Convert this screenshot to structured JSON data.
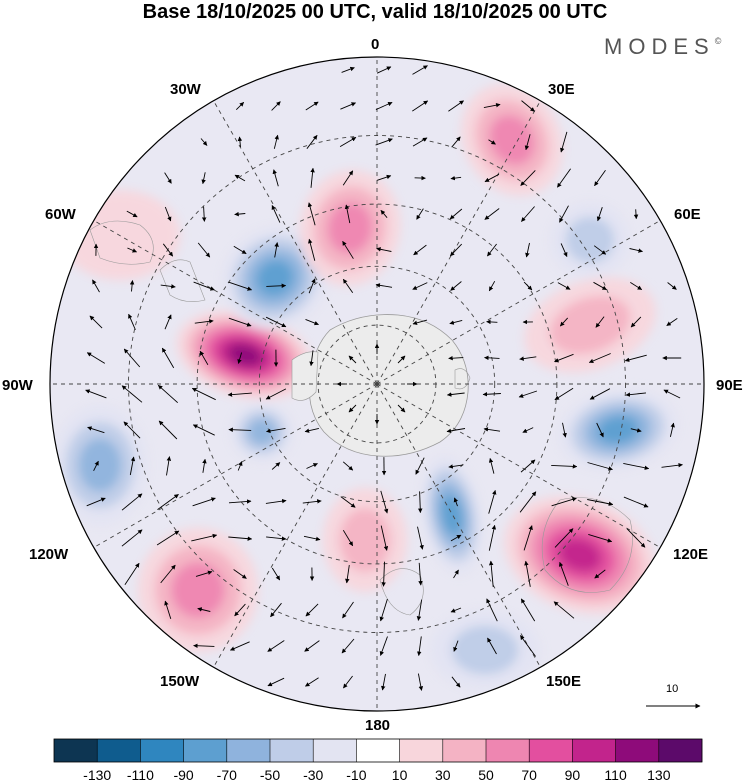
{
  "title": "Base 18/10/2025 00 UTC, valid 18/10/2025 00 UTC",
  "brand": {
    "name": "MODES",
    "mark": "©"
  },
  "longitude_labels": {
    "lon_0": "0",
    "lon_30e": "30E",
    "lon_60e": "60E",
    "lon_90e": "90E",
    "lon_120e": "120E",
    "lon_150e": "150E",
    "lon_180": "180",
    "lon_150w": "150W",
    "lon_120w": "120W",
    "lon_90w": "90W",
    "lon_60w": "60W",
    "lon_30w": "30W"
  },
  "reference_vector": {
    "label": "10"
  },
  "colorbar": {
    "colors": [
      "#0d3552",
      "#0f5c8e",
      "#2f86bf",
      "#5d9fd0",
      "#8fb3dd",
      "#bfcde8",
      "#e3e4f2",
      "#ffffff",
      "#f8d6dc",
      "#f4b3c4",
      "#ee86b1",
      "#e34f9f",
      "#c2248c",
      "#8e0b7a",
      "#5c0a6a"
    ],
    "ticks": [
      "-130",
      "-110",
      "-90",
      "-70",
      "-50",
      "-30",
      "-10",
      "10",
      "30",
      "50",
      "70",
      "90",
      "110",
      "130"
    ]
  },
  "map_data": {
    "projection": "south-polar-stereographic",
    "field": "anomaly",
    "positive_color": "#d81b8c",
    "negative_color": "#1f6fa8",
    "centers": [
      {
        "name": "30E",
        "value": 60
      },
      {
        "name": "70E",
        "value": -40
      },
      {
        "name": "80E",
        "value": 50
      },
      {
        "name": "100E",
        "value": -80
      },
      {
        "name": "130E",
        "value": 110
      },
      {
        "name": "155E",
        "value": -80
      },
      {
        "name": "165E",
        "value": -50
      },
      {
        "name": "180",
        "value": 50
      },
      {
        "name": "150W",
        "value": 70
      },
      {
        "name": "105W",
        "value": -60
      },
      {
        "name": "100W",
        "value": -60
      },
      {
        "name": "75W",
        "value": 120
      },
      {
        "name": "50W",
        "value": -90
      },
      {
        "name": "25W",
        "value": 70
      },
      {
        "name": "65W",
        "value": 25
      }
    ]
  }
}
